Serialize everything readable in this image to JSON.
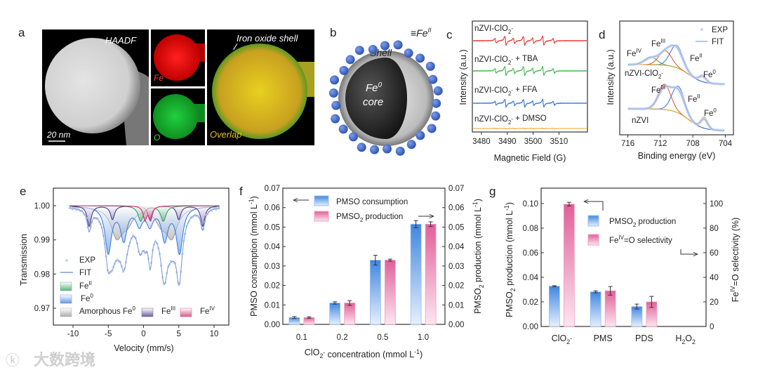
{
  "panel_labels": {
    "a": "a",
    "b": "b",
    "c": "c",
    "d": "d",
    "e": "e",
    "f": "f",
    "g": "g"
  },
  "panel_a": {
    "haadf": "HAADF",
    "scale": "20 nm",
    "fe": "Fe",
    "o": "O",
    "overlap": "Overlap",
    "shell": "Iron oxide shell"
  },
  "panel_b": {
    "shell": "Shell",
    "fe2_prefix": "≡Fe",
    "fe2_sup": "II",
    "core_fe": "Fe",
    "core_sup": "0",
    "core": "core"
  },
  "watermark": "大数跨境",
  "chart_data": [
    {
      "id": "c",
      "type": "line",
      "title": "",
      "xlabel": "Magnetic Field (G)",
      "ylabel": "Intensity (a.u.)",
      "xlim": [
        3476.5,
        3521
      ],
      "xticks": [
        "3480",
        "3490",
        "3500",
        "3510"
      ],
      "peak_fields": [
        3485.5,
        3489.3,
        3492.6,
        3496.5,
        3500.0,
        3503.9,
        3508.0
      ],
      "peak_weights": [
        0.5,
        1,
        0.6,
        1,
        0.6,
        1,
        0.5
      ],
      "series": [
        {
          "name": "nZVI-ClO2-",
          "label": "nZVI-ClO",
          "sub": "2",
          "sup": "-",
          "suffix": "",
          "color": "#e53935",
          "scale": 1
        },
        {
          "name": "nZVI-ClO2- + TBA",
          "label": "nZVI-ClO",
          "sub": "2",
          "sup": "-",
          "suffix": " + TBA",
          "color": "#43b649",
          "scale": 1
        },
        {
          "name": "nZVI-ClO2- + FFA",
          "label": "nZVI-ClO",
          "sub": "2",
          "sup": "-",
          "suffix": " + FFA",
          "color": "#2f6fd6",
          "scale": 0.85
        },
        {
          "name": "nZVI-ClO2- + DMSO",
          "label": "nZVI-ClO",
          "sub": "2",
          "sup": "-",
          "suffix": " + DMSO",
          "color": "#f0a020",
          "scale": 0.08
        }
      ]
    },
    {
      "id": "d",
      "type": "line",
      "xlabel": "Binding energy (eV)",
      "ylabel": "Intensity (a.u.)",
      "xlim": [
        717,
        703
      ],
      "xticks": [
        "716",
        "712",
        "708",
        "704"
      ],
      "legend": [
        {
          "label": "EXP"
        },
        {
          "label": "FIT",
          "color": "#9db4e0"
        }
      ],
      "spectra": [
        {
          "name": "nZVI-ClO2-",
          "label": "nZVI-ClO",
          "sub": "2",
          "sup": "-",
          "components": [
            {
              "name": "FeIV",
              "center": 713.2,
              "amp": 0.35,
              "color": "#5aa845"
            },
            {
              "name": "FeIII",
              "center": 711.4,
              "amp": 0.65,
              "color": "#e0603a"
            },
            {
              "name": "FeII",
              "center": 710.0,
              "amp": 1.0,
              "color": "#3f7fdc"
            },
            {
              "name": "Fe0",
              "center": 706.8,
              "amp": 0.3,
              "color": "#d9a43a"
            }
          ]
        },
        {
          "name": "nZVI",
          "label": "nZVI",
          "sub": "",
          "sup": "",
          "components": [
            {
              "name": "FeIII",
              "center": 711.5,
              "amp": 0.95,
              "color": "#e0603a"
            },
            {
              "name": "FeII",
              "center": 709.8,
              "amp": 1.0,
              "color": "#3f7fdc"
            },
            {
              "name": "Fe0",
              "center": 706.6,
              "amp": 0.42,
              "color": "#d9a43a"
            }
          ]
        }
      ],
      "peak_labels": {
        "fe": "Fe",
        "iv": "IV",
        "iii": "III",
        "ii": "II",
        "zero": "0"
      }
    },
    {
      "id": "e",
      "type": "line",
      "xlabel": "Velocity (mm/s)",
      "ylabel": "Transmission",
      "xlim": [
        -12,
        12.5
      ],
      "ylim": [
        0.965,
        1.005
      ],
      "xticks": [
        "-10",
        "-5",
        "0",
        "5",
        "10"
      ],
      "yticks": [
        "1.00",
        "0.99",
        "0.98",
        "0.97"
      ],
      "components": [
        {
          "name": "Amorphous Fe0",
          "lines": [
            -3.8,
            -2.3,
            4.0,
            2.5
          ],
          "depth": [
            0.0085,
            0.004,
            0.0085,
            0.004
          ],
          "width": 1.0,
          "color": "#999999"
        },
        {
          "name": "Fe0",
          "lines": [
            -5.0,
            -2.8,
            -0.6,
            0.9,
            3.0,
            5.1
          ],
          "depth": [
            0.0135,
            0.0095,
            0.005,
            0.005,
            0.0095,
            0.0135
          ],
          "width": 0.55,
          "color": "#3f7fdc"
        },
        {
          "name": "FeIII",
          "lines": [
            -7.7,
            -4.4,
            0.9,
            5.0,
            8.4
          ],
          "depth": [
            0.006,
            0.004,
            0.004,
            0.004,
            0.006
          ],
          "width": 0.35,
          "color": "#4a3a8a"
        },
        {
          "name": "FeII",
          "lines": [
            -0.4,
            2.8
          ],
          "depth": [
            0.0045,
            0.0045
          ],
          "width": 0.45,
          "color": "#3aa060"
        },
        {
          "name": "FeIV",
          "lines": [
            0.2,
            1.0
          ],
          "depth": [
            0.004,
            0.004
          ],
          "width": 0.3,
          "color": "#d0306a"
        }
      ],
      "legend": [
        {
          "label": "EXP",
          "sup": ""
        },
        {
          "label": "FIT",
          "sup": ""
        },
        {
          "label": "Fe",
          "sup": "II"
        },
        {
          "label": "Fe",
          "sup": "0"
        },
        {
          "label": "Amorphous Fe",
          "sup": "0"
        },
        {
          "label": "Fe",
          "sup": "III"
        },
        {
          "label": "Fe",
          "sup": "IV"
        }
      ]
    },
    {
      "id": "f",
      "type": "bar",
      "categories": [
        "0.1",
        "0.2",
        "0.5",
        "1.0"
      ],
      "xlabel": "ClO",
      "xlabel_sub": "2",
      "xlabel_sup": "-",
      "xlabel_rest": " concentration (mmol L",
      "xlabel_sup2": "-1",
      "xlabel_end": ")",
      "ylabel": "PMSO consumption (mmol L",
      "ylabel_sup": "-1",
      "ylabel_end": ")",
      "ylabel_right": "PMSO",
      "ylabel_right_sub": "2",
      "ylabel_right_rest": " production (mmol L",
      "ylabel_right_sup": "-1",
      "ylabel_right_end": ")",
      "ylim": [
        0,
        0.07
      ],
      "yticks": [
        "0.00",
        "0.01",
        "0.02",
        "0.03",
        "0.04",
        "0.05",
        "0.06",
        "0.07"
      ],
      "series": [
        {
          "name": "PMSO consumption",
          "label": "PMSO consumption",
          "sub": "",
          "rest": "",
          "values": [
            0.0035,
            0.011,
            0.033,
            0.0515
          ],
          "errors": [
            0.0005,
            0.0006,
            0.0025,
            0.0018
          ],
          "color": "#3f86e0"
        },
        {
          "name": "PMSO2 production",
          "label": "PMSO",
          "sub": "2",
          "rest": " production",
          "values": [
            0.0035,
            0.011,
            0.033,
            0.0515
          ],
          "errors": [
            0.0004,
            0.0012,
            0.0005,
            0.0012
          ],
          "color": "#e0609a"
        }
      ]
    },
    {
      "id": "g",
      "type": "bar",
      "categories": [
        {
          "t": "ClO",
          "sub": "2",
          "sup": "-"
        },
        {
          "t": "PMS",
          "sub": "",
          "sup": ""
        },
        {
          "t": "PDS",
          "sub": "",
          "sup": ""
        },
        {
          "t": "H",
          "sub": "2",
          "t2": "O",
          "sub2": "2"
        }
      ],
      "ylabel": "PMSO",
      "ylabel_sub": "2",
      "ylabel_rest": " production (mmol L",
      "ylabel_sup": "-1",
      "ylabel_end": ")",
      "ylabel_right": "Fe",
      "ylabel_right_sup": "IV",
      "ylabel_right_rest": "=O selectivity (%)",
      "ylim": [
        0,
        0.1125
      ],
      "yticks": [
        "0.00",
        "0.02",
        "0.04",
        "0.06",
        "0.08",
        "0.10"
      ],
      "ylim_right": [
        0,
        112.5
      ],
      "yticks_right": [
        "0",
        "20",
        "40",
        "60",
        "80",
        "100"
      ],
      "series": [
        {
          "name": "PMSO2 production",
          "label": "PMSO",
          "sub": "2",
          "sup": "",
          "rest": " production",
          "axis": "left",
          "values": [
            0.0328,
            0.0282,
            0.0162,
            0
          ],
          "errors": [
            0.0004,
            0.0008,
            0.002,
            0
          ],
          "color": "#3f86e0"
        },
        {
          "name": "FeIV=O selectivity",
          "label": "Fe",
          "sub": "",
          "sup": "IV",
          "rest": "=O selectivity",
          "axis": "right",
          "values": [
            99.5,
            29,
            20,
            0
          ],
          "errors": [
            1.5,
            3.5,
            4.5,
            0
          ],
          "color": "#e0609a"
        }
      ]
    }
  ]
}
